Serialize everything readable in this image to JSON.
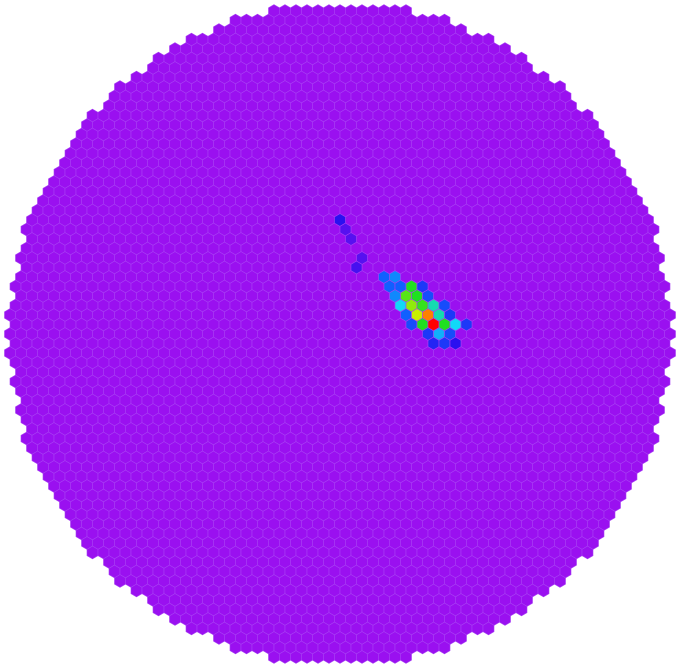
{
  "chart_data": {
    "type": "hexcamera",
    "color": "#9a10f0",
    "vlim": [
      0,
      100
    ],
    "colormap": [
      {
        "value": 0,
        "color": "#9a10f0"
      },
      {
        "value": 20,
        "color": "#2a10f0"
      },
      {
        "value": 40,
        "color": "#1060ff"
      },
      {
        "value": 55,
        "color": "#10d8f8"
      },
      {
        "value": 70,
        "color": "#20e020"
      },
      {
        "value": 85,
        "color": "#c8f000"
      },
      {
        "value": 92,
        "color": "#ff8000"
      },
      {
        "value": 100,
        "color": "#ff0000"
      }
    ],
    "cells": [
      {
        "row": -12,
        "col": 0,
        "value": 20
      },
      {
        "row": -11,
        "col": 0,
        "value": 12
      },
      {
        "row": -10,
        "col": 1,
        "value": 12
      },
      {
        "row": -8,
        "col": 2,
        "value": 12
      },
      {
        "row": -7,
        "col": 1,
        "value": 15
      },
      {
        "row": -6,
        "col": 4,
        "value": 40
      },
      {
        "row": -6,
        "col": 5,
        "value": 45
      },
      {
        "row": -5,
        "col": 4,
        "value": 40
      },
      {
        "row": -5,
        "col": 5,
        "value": 40
      },
      {
        "row": -5,
        "col": 6,
        "value": 70
      },
      {
        "row": -5,
        "col": 7,
        "value": 30
      },
      {
        "row": -4,
        "col": 5,
        "value": 45
      },
      {
        "row": -4,
        "col": 6,
        "value": 75
      },
      {
        "row": -4,
        "col": 7,
        "value": 70
      },
      {
        "row": -4,
        "col": 8,
        "value": 35
      },
      {
        "row": -3,
        "col": 5,
        "value": 55
      },
      {
        "row": -3,
        "col": 6,
        "value": 80
      },
      {
        "row": -3,
        "col": 7,
        "value": 72
      },
      {
        "row": -3,
        "col": 8,
        "value": 60
      },
      {
        "row": -3,
        "col": 9,
        "value": 35
      },
      {
        "row": -2,
        "col": 6,
        "value": 40
      },
      {
        "row": -2,
        "col": 7,
        "value": 85
      },
      {
        "row": -2,
        "col": 8,
        "value": 92
      },
      {
        "row": -2,
        "col": 9,
        "value": 60
      },
      {
        "row": -2,
        "col": 10,
        "value": 30
      },
      {
        "row": -1,
        "col": 6,
        "value": 35
      },
      {
        "row": -1,
        "col": 7,
        "value": 70
      },
      {
        "row": -1,
        "col": 8,
        "value": 100
      },
      {
        "row": -1,
        "col": 9,
        "value": 70
      },
      {
        "row": -1,
        "col": 10,
        "value": 55
      },
      {
        "row": -1,
        "col": 11,
        "value": 30
      },
      {
        "row": 0,
        "col": 8,
        "value": 30
      },
      {
        "row": 0,
        "col": 9,
        "value": 50
      },
      {
        "row": 0,
        "col": 10,
        "value": 35
      },
      {
        "row": 1,
        "col": 8,
        "value": 25
      },
      {
        "row": 1,
        "col": 9,
        "value": 30
      },
      {
        "row": 1,
        "col": 10,
        "value": 20
      }
    ]
  }
}
